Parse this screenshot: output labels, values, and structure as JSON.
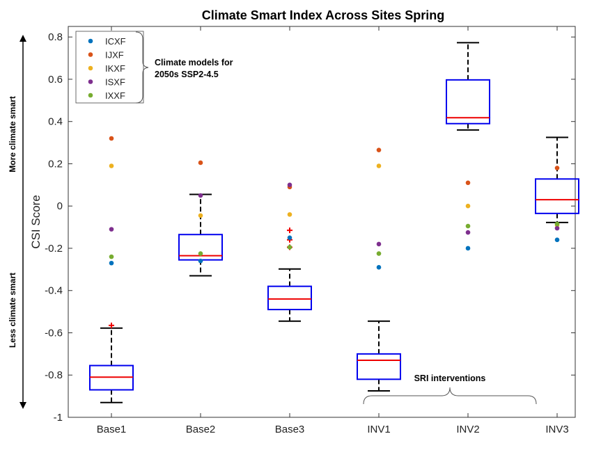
{
  "chart_data": {
    "type": "box",
    "title": "Climate Smart Index Across Sites Spring",
    "ylabel": "CSI Score",
    "ylim": [
      -1,
      0.85
    ],
    "yticks": [
      0.8,
      0.6,
      0.4,
      0.2,
      0,
      -0.2,
      -0.4,
      -0.6,
      -0.8,
      -1
    ],
    "ytick_labels": [
      "0.8",
      "0.6",
      "0.4",
      "0.2",
      "0",
      "-0.2",
      "-0.4",
      "-0.6",
      "-0.8",
      "-1"
    ],
    "categories": [
      "Base1",
      "Base2",
      "Base3",
      "INV1",
      "INV2",
      "INV3"
    ],
    "boxes": [
      {
        "whisker_low": -0.93,
        "q1": -0.87,
        "median": -0.81,
        "q3": -0.755,
        "whisker_high": -0.578,
        "outliers": [
          -0.565
        ]
      },
      {
        "whisker_low": -0.33,
        "q1": -0.255,
        "median": -0.235,
        "q3": -0.135,
        "whisker_high": 0.055,
        "outliers": []
      },
      {
        "whisker_low": -0.545,
        "q1": -0.49,
        "median": -0.44,
        "q3": -0.38,
        "whisker_high": -0.298,
        "outliers": [
          -0.115,
          -0.16,
          -0.195
        ]
      },
      {
        "whisker_low": -0.875,
        "q1": -0.82,
        "median": -0.73,
        "q3": -0.7,
        "whisker_high": -0.545,
        "outliers": []
      },
      {
        "whisker_low": 0.36,
        "q1": 0.39,
        "median": 0.418,
        "q3": 0.597,
        "whisker_high": 0.773,
        "outliers": []
      },
      {
        "whisker_low": -0.078,
        "q1": -0.035,
        "median": 0.03,
        "q3": 0.128,
        "whisker_high": 0.325,
        "outliers": []
      }
    ],
    "series": [
      {
        "name": "ICXF",
        "color": "#0072BD",
        "values": [
          -0.27,
          -0.26,
          -0.15,
          -0.29,
          -0.2,
          -0.16
        ]
      },
      {
        "name": "IJXF",
        "color": "#D95319",
        "values": [
          0.32,
          0.205,
          0.09,
          0.265,
          0.11,
          0.18
        ]
      },
      {
        "name": "IKXF",
        "color": "#EDB120",
        "values": [
          0.19,
          -0.045,
          -0.04,
          0.19,
          0.0,
          -0.09
        ]
      },
      {
        "name": "ISXF",
        "color": "#7E2F8E",
        "values": [
          -0.11,
          0.05,
          0.1,
          -0.18,
          -0.125,
          -0.105
        ]
      },
      {
        "name": "IXXF",
        "color": "#77AC30",
        "values": [
          -0.24,
          -0.225,
          -0.195,
          -0.225,
          -0.095,
          -0.085
        ]
      }
    ],
    "legend_note": [
      "Climate models for",
      "2050s SSP2-4.5"
    ],
    "side_labels": {
      "top": "More climate smart",
      "bottom": "Less climate smart"
    },
    "bracket_label": "SRI interventions",
    "legend_position": "top-left",
    "box_color": "#0000EE",
    "median_color": "#EE0000",
    "whisker_color": "#000000",
    "outlier_color": "#EE0000"
  }
}
